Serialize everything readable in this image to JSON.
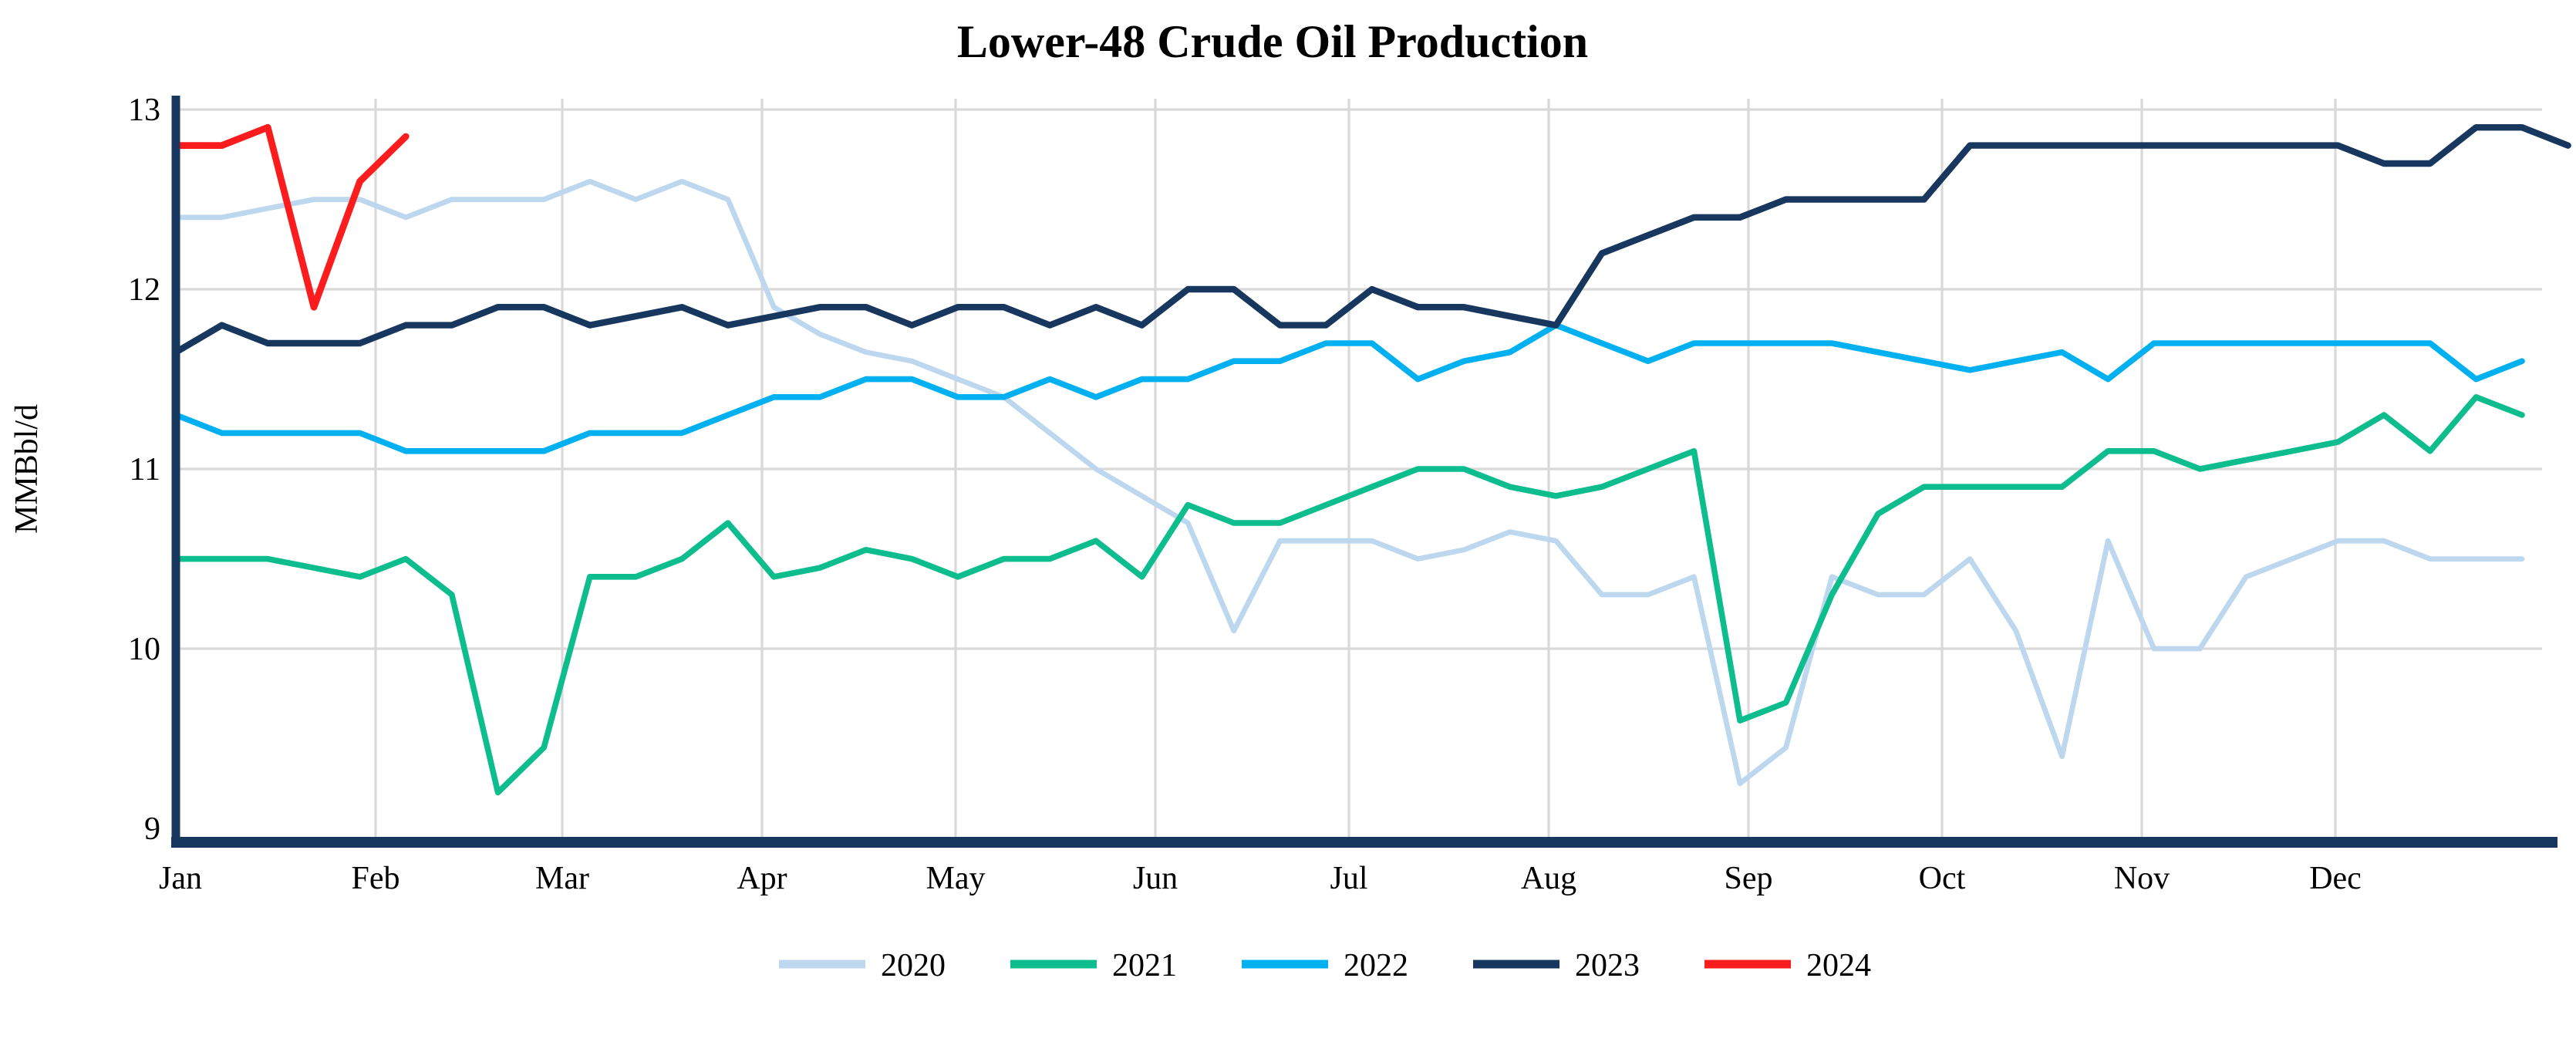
{
  "title": "Lower-48 Crude Oil Production",
  "y_axis": {
    "label": "MMBbl/d",
    "ticks": [
      "13",
      "12",
      "11",
      "10",
      "9"
    ]
  },
  "x_axis": {
    "months": [
      "Jan",
      "Feb",
      "Mar",
      "Apr",
      "May",
      "Jun",
      "Jul",
      "Aug",
      "Sep",
      "Oct",
      "Nov",
      "Dec"
    ]
  },
  "colors": {
    "axis": "#17375E",
    "gridline": "#D9D9D9",
    "background": "#FFFFFF"
  },
  "chart_data": {
    "type": "line",
    "title": "Lower-48 Crude Oil Production",
    "xlabel": "",
    "ylabel": "MMBbl/d",
    "ylim": [
      9,
      13
    ],
    "x_range": "weekly points, Jan through Dec",
    "grid": true,
    "legend_position": "bottom",
    "series": [
      {
        "name": "2020",
        "color": "#BDD7EE",
        "values": [
          12.4,
          12.4,
          12.45,
          12.5,
          12.5,
          12.4,
          12.5,
          12.5,
          12.5,
          12.6,
          12.5,
          12.6,
          12.5,
          11.9,
          11.75,
          11.65,
          11.6,
          11.5,
          11.4,
          11.2,
          11.0,
          10.85,
          10.7,
          10.1,
          10.6,
          10.6,
          10.6,
          10.5,
          10.55,
          10.65,
          10.6,
          10.3,
          10.3,
          10.4,
          9.25,
          9.45,
          10.4,
          10.3,
          10.3,
          10.5,
          10.1,
          9.4,
          10.6,
          10.0,
          10.0,
          10.4,
          10.5,
          10.6,
          10.6,
          10.5,
          10.5,
          10.5
        ]
      },
      {
        "name": "2021",
        "color": "#0DBD8D",
        "values": [
          10.5,
          10.5,
          10.5,
          10.45,
          10.4,
          10.5,
          10.3,
          9.2,
          9.45,
          10.4,
          10.4,
          10.5,
          10.7,
          10.4,
          10.45,
          10.55,
          10.5,
          10.4,
          10.5,
          10.5,
          10.6,
          10.4,
          10.8,
          10.7,
          10.7,
          10.8,
          10.9,
          11.0,
          11.0,
          10.9,
          10.85,
          10.9,
          11.0,
          11.1,
          9.6,
          9.7,
          10.3,
          10.75,
          10.9,
          10.9,
          10.9,
          10.9,
          11.1,
          11.1,
          11.0,
          11.05,
          11.1,
          11.15,
          11.3,
          11.1,
          11.4,
          11.3
        ]
      },
      {
        "name": "2022",
        "color": "#00B0F0",
        "values": [
          11.3,
          11.2,
          11.2,
          11.2,
          11.2,
          11.1,
          11.1,
          11.1,
          11.1,
          11.2,
          11.2,
          11.2,
          11.3,
          11.4,
          11.4,
          11.5,
          11.5,
          11.4,
          11.4,
          11.5,
          11.4,
          11.5,
          11.5,
          11.6,
          11.6,
          11.7,
          11.7,
          11.5,
          11.6,
          11.65,
          11.8,
          11.7,
          11.6,
          11.7,
          11.7,
          11.7,
          11.7,
          11.65,
          11.6,
          11.55,
          11.6,
          11.65,
          11.5,
          11.7,
          11.7,
          11.7,
          11.7,
          11.7,
          11.7,
          11.7,
          11.5,
          11.6
        ]
      },
      {
        "name": "2023",
        "color": "#17375E",
        "values": [
          11.65,
          11.8,
          11.7,
          11.7,
          11.7,
          11.8,
          11.8,
          11.9,
          11.9,
          11.8,
          11.85,
          11.9,
          11.8,
          11.85,
          11.9,
          11.9,
          11.8,
          11.9,
          11.9,
          11.8,
          11.9,
          11.8,
          12.0,
          12.0,
          11.8,
          11.8,
          12.0,
          11.9,
          11.9,
          11.85,
          11.8,
          12.2,
          12.3,
          12.4,
          12.4,
          12.5,
          12.5,
          12.5,
          12.5,
          12.8,
          12.8,
          12.8,
          12.8,
          12.8,
          12.8,
          12.8,
          12.8,
          12.8,
          12.7,
          12.7,
          12.9,
          12.9,
          12.8
        ]
      },
      {
        "name": "2024",
        "color": "#FB1D1D",
        "values": [
          12.8,
          12.8,
          12.9,
          11.9,
          12.6,
          12.85
        ]
      }
    ]
  }
}
